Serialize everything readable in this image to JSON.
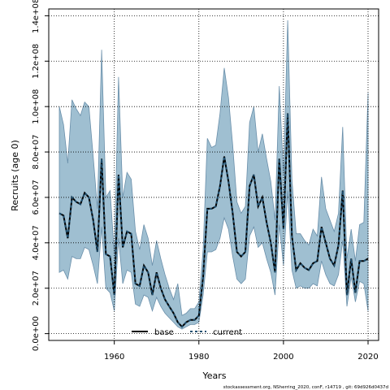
{
  "chart_data": {
    "type": "line",
    "xlabel": "Years",
    "ylabel": "Recruits (age 0)",
    "xlim": [
      1944.5,
      2022.5
    ],
    "ylim": [
      -3000000,
      143000000
    ],
    "x_ticks": [
      1960,
      1980,
      2000,
      2020
    ],
    "x_tick_labels": [
      "1960",
      "1980",
      "2000",
      "2020"
    ],
    "y_ticks": [
      0,
      20000000,
      40000000,
      60000000,
      80000000,
      100000000,
      120000000,
      140000000
    ],
    "y_tick_labels": [
      "0.0e+00",
      "2.0e+07",
      "4.0e+07",
      "6.0e+07",
      "8.0e+07",
      "1.0e+08",
      "1.2e+08",
      "1.4e+08"
    ],
    "grid": true,
    "legend": {
      "position": "bottom",
      "entries": [
        "base",
        "current"
      ]
    },
    "colors": {
      "band": "#7fa9c2",
      "band_edge": "#6a8faa",
      "base": "#000000",
      "current": "#1f4f6f"
    },
    "years": [
      1947,
      1948,
      1949,
      1950,
      1951,
      1952,
      1953,
      1954,
      1955,
      1956,
      1957,
      1958,
      1959,
      1960,
      1961,
      1962,
      1963,
      1964,
      1965,
      1966,
      1967,
      1968,
      1969,
      1970,
      1971,
      1972,
      1973,
      1974,
      1975,
      1976,
      1977,
      1978,
      1979,
      1980,
      1981,
      1982,
      1983,
      1984,
      1985,
      1986,
      1987,
      1988,
      1989,
      1990,
      1991,
      1992,
      1993,
      1994,
      1995,
      1996,
      1997,
      1998,
      1999,
      2000,
      2001,
      2002,
      2003,
      2004,
      2005,
      2006,
      2007,
      2008,
      2009,
      2010,
      2011,
      2012,
      2013,
      2014,
      2015,
      2016,
      2017,
      2018,
      2019,
      2020
    ],
    "series": [
      {
        "name": "base",
        "values": [
          53,
          52,
          42,
          60,
          58,
          57,
          62,
          60,
          50,
          36,
          77,
          35,
          34,
          17,
          70,
          38,
          45,
          44,
          22,
          21,
          30,
          27,
          17,
          27,
          20,
          15,
          12,
          9,
          5,
          3,
          5,
          6,
          6,
          8,
          25,
          55,
          55,
          56,
          65,
          78,
          67,
          53,
          36,
          34,
          36,
          65,
          70,
          56,
          60,
          49,
          40,
          27,
          77,
          46,
          97,
          43,
          28,
          31,
          29,
          28,
          31,
          32,
          47,
          40,
          33,
          30,
          39,
          63,
          17,
          33,
          18,
          32,
          32,
          33
        ]
      },
      {
        "name": "current",
        "values": [
          53,
          52,
          42,
          60,
          58,
          57,
          62,
          60,
          50,
          36,
          77,
          35,
          34,
          17,
          70,
          38,
          45,
          44,
          22,
          21,
          30,
          27,
          17,
          27,
          20,
          15,
          12,
          9,
          5,
          3,
          5,
          6,
          6,
          8,
          25,
          55,
          55,
          56,
          65,
          78,
          67,
          53,
          36,
          34,
          36,
          65,
          70,
          56,
          60,
          49,
          40,
          27,
          77,
          46,
          97,
          43,
          28,
          31,
          29,
          28,
          31,
          32,
          47,
          40,
          33,
          30,
          39,
          63,
          17,
          33,
          18,
          32,
          32,
          33
        ]
      }
    ],
    "band_upper": [
      100,
      92,
      75,
      103,
      99,
      96,
      102,
      100,
      78,
      55,
      125,
      60,
      63,
      35,
      113,
      60,
      71,
      68,
      45,
      37,
      48,
      42,
      30,
      41,
      33,
      26,
      20,
      15,
      22,
      8,
      9,
      11,
      11,
      14,
      37,
      86,
      82,
      83,
      97,
      117,
      104,
      83,
      58,
      53,
      56,
      93,
      100,
      80,
      88,
      77,
      67,
      50,
      109,
      70,
      138,
      68,
      44,
      44,
      41,
      39,
      46,
      43,
      69,
      55,
      50,
      45,
      53,
      91,
      33,
      46,
      32,
      48,
      49,
      106
    ],
    "band_lower": [
      27,
      28,
      24,
      34,
      33,
      33,
      38,
      37,
      30,
      22,
      47,
      20,
      18,
      10,
      42,
      22,
      28,
      27,
      13,
      12,
      17,
      16,
      10,
      16,
      12,
      9,
      7,
      5,
      3,
      2,
      3,
      4,
      4,
      5,
      17,
      36,
      36,
      37,
      42,
      51,
      46,
      34,
      24,
      22,
      24,
      43,
      47,
      38,
      40,
      33,
      27,
      17,
      48,
      30,
      63,
      28,
      20,
      21,
      20,
      20,
      22,
      21,
      32,
      26,
      22,
      21,
      26,
      41,
      12,
      25,
      14,
      23,
      22,
      10
    ],
    "value_unit_note": "1e6 recruits",
    "footer": "stockassessment.org, NSherring_2020, conF, r14719 , git: 69d926d0437d"
  }
}
